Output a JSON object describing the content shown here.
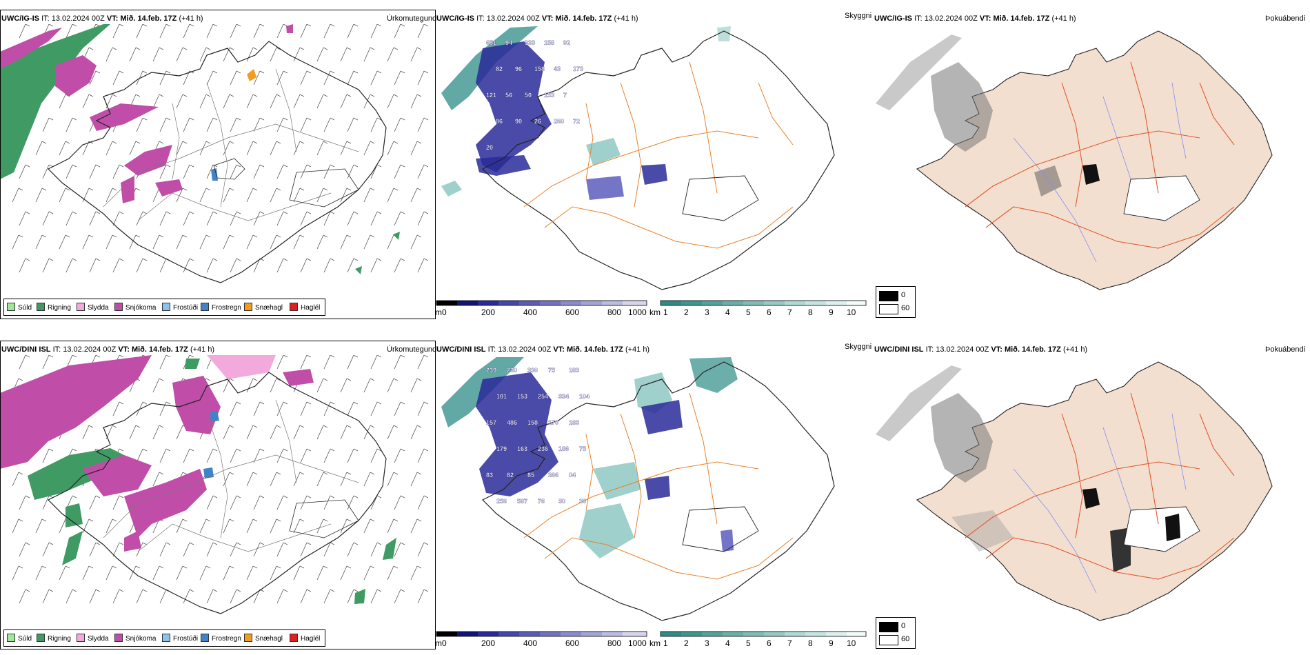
{
  "colors": {
    "drizzle": "#9ee89a",
    "rain": "#3f9a63",
    "sleet": "#f2a9dc",
    "snow": "#c04ea8",
    "freezing_drizzle": "#8cc3ee",
    "freezing_rain": "#3f83c8",
    "snow_grains": "#f39c1e",
    "hail": "#e01f1f",
    "cloud_teal": "#2e8b85",
    "cloud_blue": "#2a2a9a",
    "roads": "#e8822a",
    "fog_fill": "#f3dfd0",
    "fog_roads": "#e05a30",
    "rivers": "#7f8ff0"
  },
  "rows": [
    {
      "model": "UWC/IG-IS",
      "it_label": "IT:",
      "it_value": "13.02.2024 00Z",
      "vt_label": "VT:",
      "vt_value": "Mið. 14.feb. 17Z",
      "lead": "(+41 h)",
      "precip_label": "Úrkomutegund",
      "visibility_label": "Skyggni",
      "fog_label": "Þokuábendi"
    },
    {
      "model": "UWC/DINI ISL",
      "it_label": "IT:",
      "it_value": "13.02.2024 00Z",
      "vt_label": "VT:",
      "vt_value": "Mið. 14.feb. 17Z",
      "lead": "(+41 h)",
      "precip_label": "Úrkomutegund",
      "visibility_label": "Skyggni",
      "fog_label": "Þokuábendi"
    }
  ],
  "precip_legend": [
    "Súld",
    "Rigning",
    "Slydda",
    "Snjókoma",
    "Frostúði",
    "Frostregn",
    "Snæhagl",
    "Haglél"
  ],
  "cloudbase_scale": {
    "unit": "m",
    "ticks": [
      "0",
      "200",
      "400",
      "600",
      "800",
      "1000"
    ]
  },
  "visibility_scale": {
    "unit": "km",
    "ticks": [
      "1",
      "2",
      "3",
      "4",
      "5",
      "6",
      "7",
      "8",
      "9",
      "10"
    ]
  },
  "fog_scale": {
    "ticks": [
      "0",
      "60"
    ]
  },
  "cloud_labels_top": [
    "651",
    "94",
    "933",
    "158",
    "92",
    "82",
    "96",
    "158",
    "43",
    "173",
    "121",
    "56",
    "50",
    "153",
    "7",
    "86",
    "90",
    "26",
    "260",
    "72",
    "20"
  ],
  "cloud_labels_bottom": [
    "239",
    "230",
    "330",
    "75",
    "183",
    "101",
    "153",
    "254",
    "334",
    "104",
    "157",
    "486",
    "158",
    "170",
    "183",
    "179",
    "163",
    "236",
    "186",
    "75",
    "83",
    "82",
    "85",
    "366",
    "04",
    "256",
    "587",
    "76",
    "30",
    "36"
  ]
}
